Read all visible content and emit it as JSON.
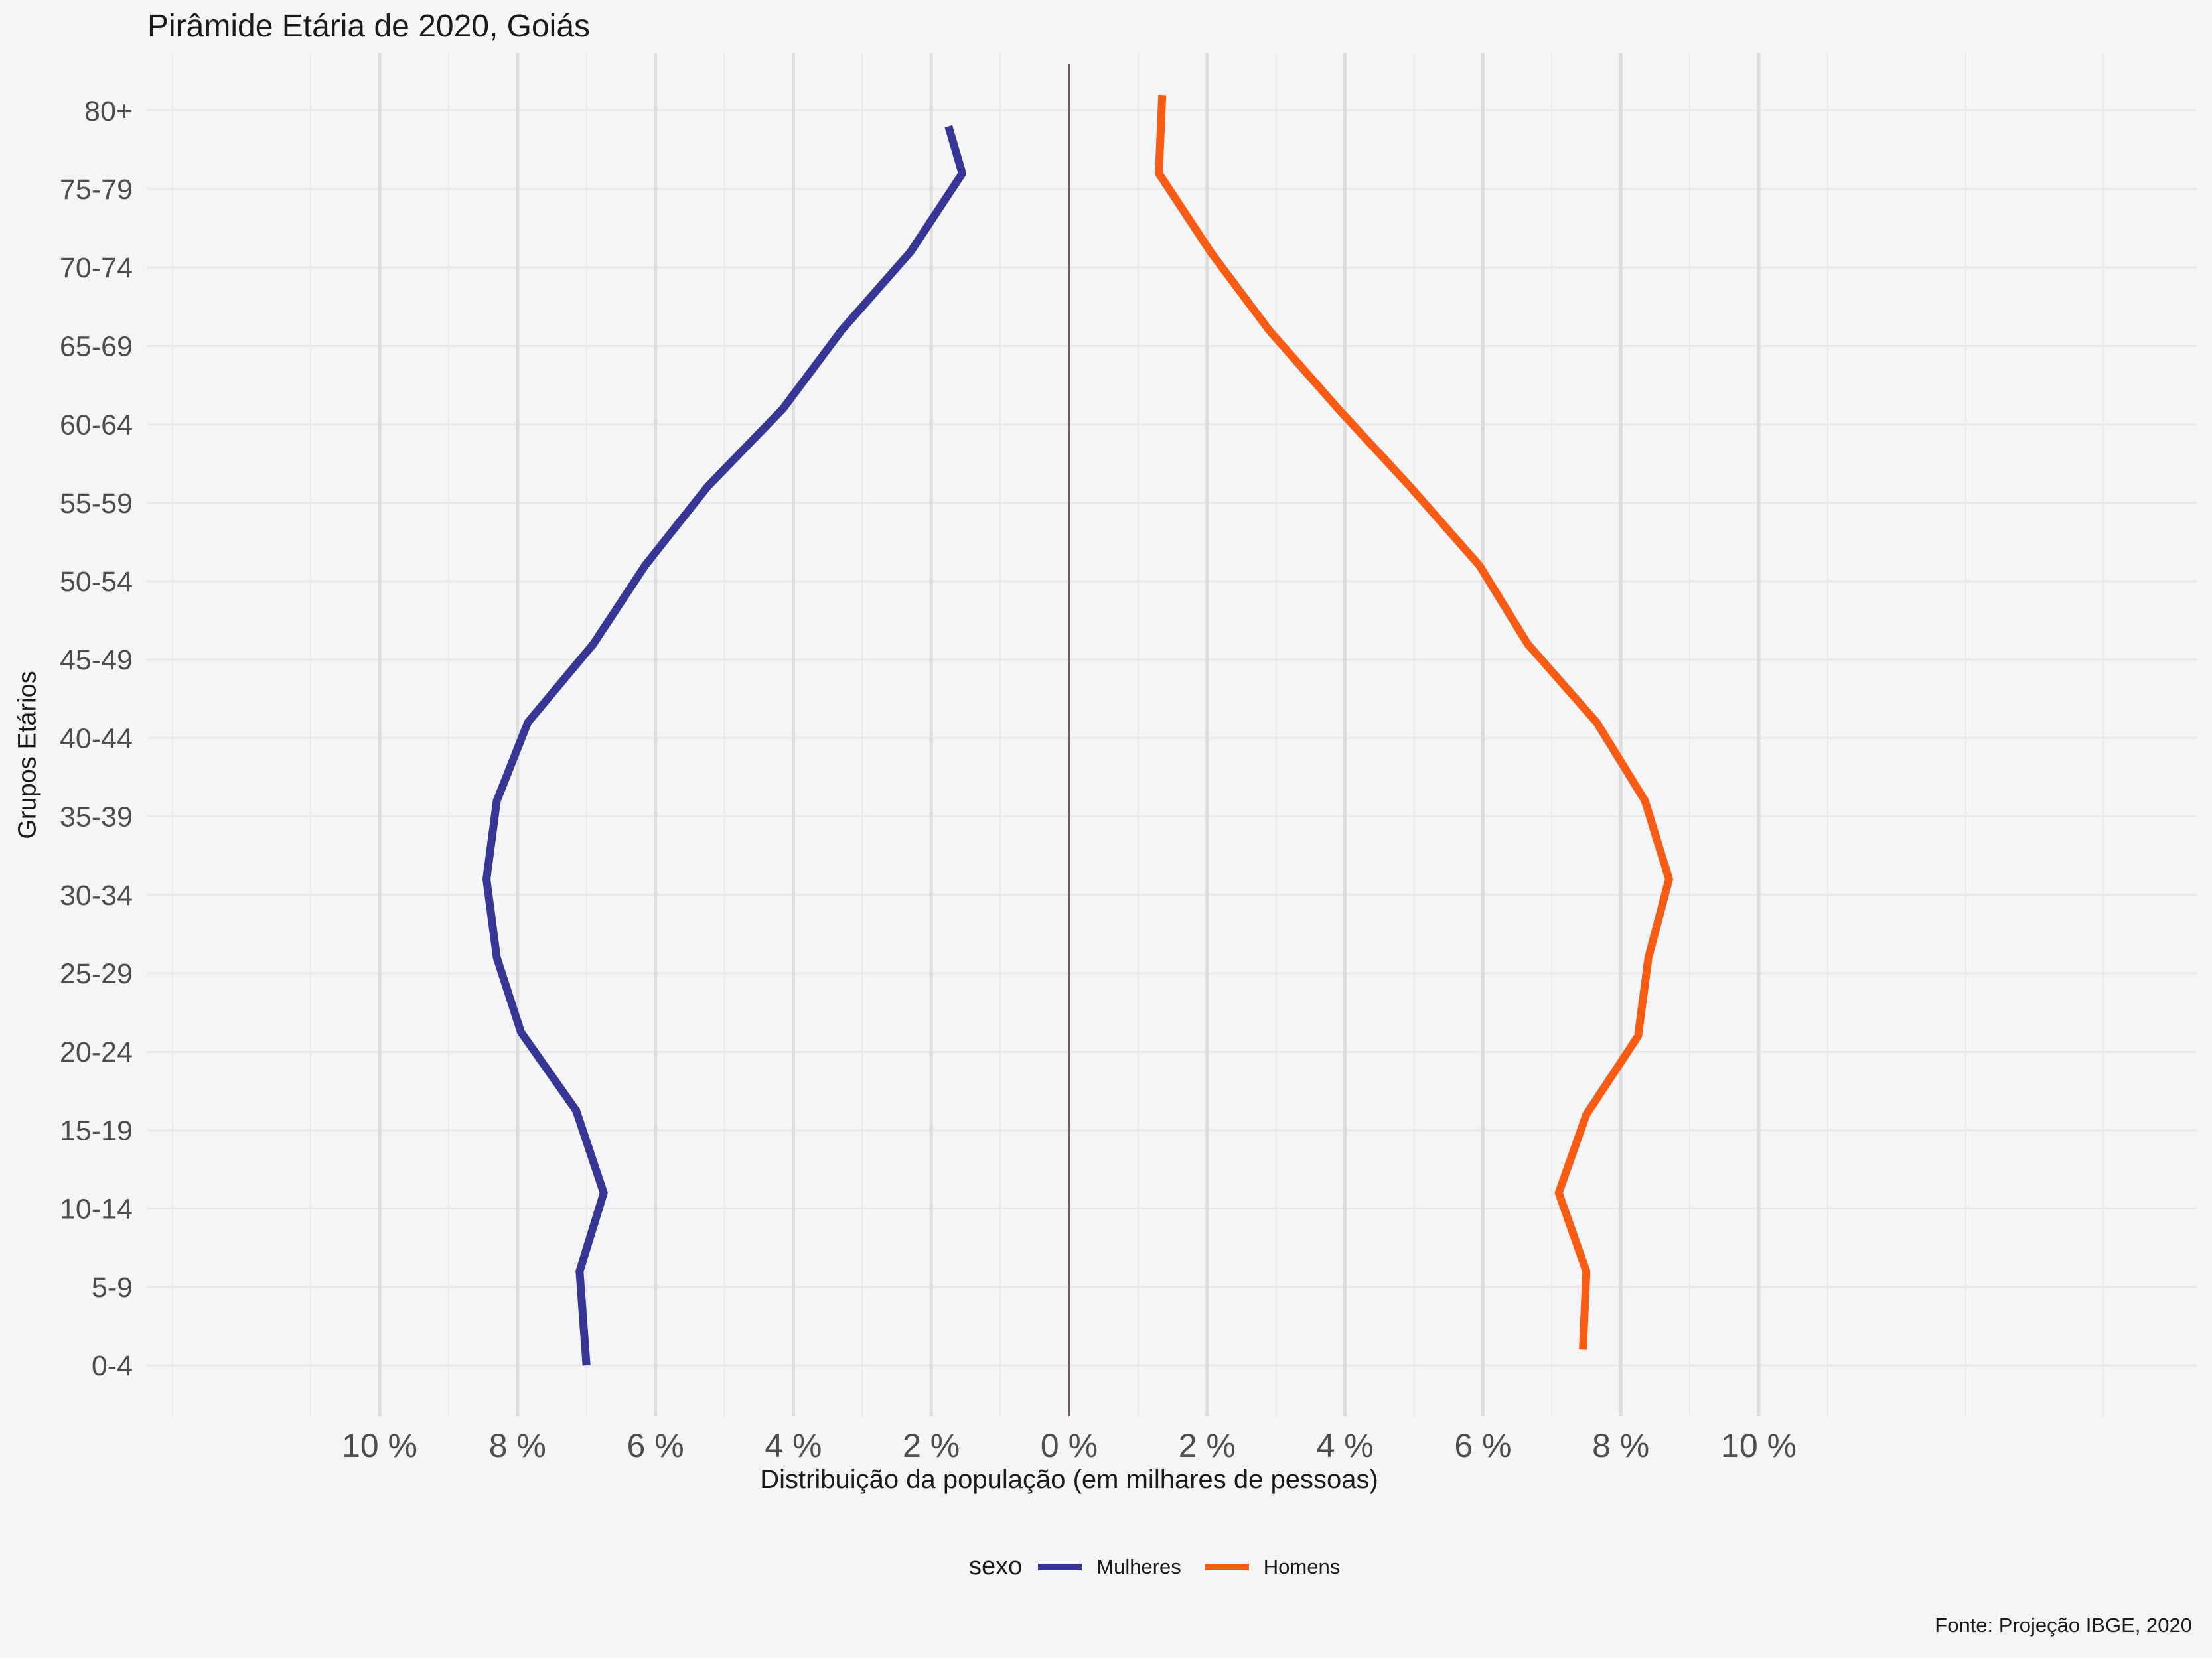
{
  "chart_data": {
    "type": "line",
    "title": "Pirâmide Etária de 2020, Goiás",
    "xlabel": "Distribuição da população (em milhares de pessoas)",
    "ylabel": "Grupos Etários",
    "caption": "Fonte: Projeção IBGE, 2020",
    "legend_title": "sexo",
    "legend_position": "bottom",
    "categories": [
      "0-4",
      "5-9",
      "10-14",
      "15-19",
      "20-24",
      "25-29",
      "30-34",
      "35-39",
      "40-44",
      "45-49",
      "50-54",
      "55-59",
      "60-64",
      "65-69",
      "70-74",
      "75-79",
      "80+"
    ],
    "x_ticks": [
      -10,
      -8,
      -6,
      -4,
      -2,
      0,
      2,
      4,
      6,
      8,
      10
    ],
    "x_tick_labels": [
      "10 %",
      "8 %",
      "6 %",
      "4 %",
      "2 %",
      "0 %",
      "2 %",
      "4 %",
      "6 %",
      "8 %",
      "10 %"
    ],
    "xlim": [
      -13.3,
      16.3
    ],
    "series": [
      {
        "name": "Mulheres",
        "color": "#363795",
        "points": [
          {
            "x": -7.0,
            "y": 0.0
          },
          {
            "x": -7.1,
            "y": 1.2
          },
          {
            "x": -6.75,
            "y": 2.2
          },
          {
            "x": -7.15,
            "y": 3.25
          },
          {
            "x": -7.95,
            "y": 4.25
          },
          {
            "x": -8.3,
            "y": 5.2
          },
          {
            "x": -8.45,
            "y": 6.2
          },
          {
            "x": -8.3,
            "y": 7.2
          },
          {
            "x": -7.85,
            "y": 8.2
          },
          {
            "x": -6.9,
            "y": 9.2
          },
          {
            "x": -6.15,
            "y": 10.2
          },
          {
            "x": -5.25,
            "y": 11.2
          },
          {
            "x": -4.15,
            "y": 12.2
          },
          {
            "x": -3.3,
            "y": 13.2
          },
          {
            "x": -2.3,
            "y": 14.2
          },
          {
            "x": -1.55,
            "y": 15.2
          },
          {
            "x": -1.75,
            "y": 15.8
          }
        ]
      },
      {
        "name": "Homens",
        "color": "#F75B14",
        "points": [
          {
            "x": 7.45,
            "y": 0.2
          },
          {
            "x": 7.5,
            "y": 1.2
          },
          {
            "x": 7.1,
            "y": 2.2
          },
          {
            "x": 7.5,
            "y": 3.2
          },
          {
            "x": 8.25,
            "y": 4.2
          },
          {
            "x": 8.4,
            "y": 5.2
          },
          {
            "x": 8.7,
            "y": 6.2
          },
          {
            "x": 8.35,
            "y": 7.2
          },
          {
            "x": 7.65,
            "y": 8.2
          },
          {
            "x": 6.65,
            "y": 9.2
          },
          {
            "x": 5.95,
            "y": 10.2
          },
          {
            "x": 4.95,
            "y": 11.2
          },
          {
            "x": 3.9,
            "y": 12.2
          },
          {
            "x": 2.9,
            "y": 13.2
          },
          {
            "x": 2.05,
            "y": 14.2
          },
          {
            "x": 1.3,
            "y": 15.2
          },
          {
            "x": 1.35,
            "y": 16.2
          }
        ]
      }
    ],
    "grid": true,
    "zero_line_color": "#6B5B5E"
  }
}
